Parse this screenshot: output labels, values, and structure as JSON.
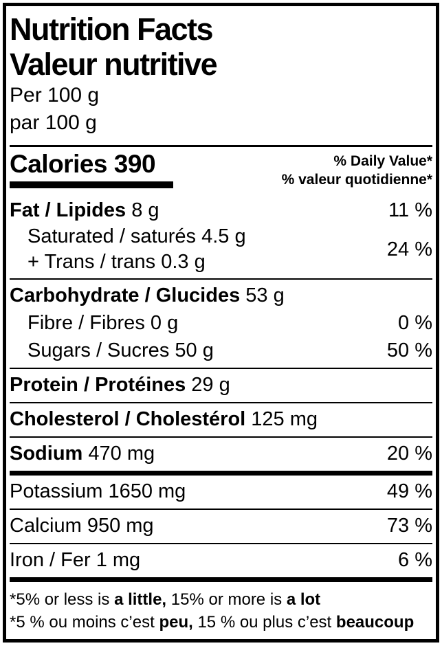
{
  "colors": {
    "foreground": "#000000",
    "background": "#ffffff"
  },
  "label": {
    "title_en": "Nutrition Facts",
    "title_fr": "Valeur nutritive",
    "serving_en": "Per 100 g",
    "serving_fr": "par 100 g",
    "calories_label": "Calories",
    "calories_value": "390",
    "dv_header_en": "% Daily Value*",
    "dv_header_fr": "% valeur quotidienne*",
    "fat": {
      "label": "Fat / Lipides",
      "amount": "8 g",
      "dv": "11 %"
    },
    "saturated": {
      "label": "Saturated / saturés",
      "amount": "4.5 g"
    },
    "trans": {
      "label": "+ Trans / trans",
      "amount": "0.3 g"
    },
    "sat_trans_dv": "24 %",
    "carbohydrate": {
      "label": "Carbohydrate / Glucides",
      "amount": "53 g"
    },
    "fibre": {
      "label": "Fibre / Fibres",
      "amount": "0 g",
      "dv": "0 %"
    },
    "sugars": {
      "label": "Sugars / Sucres",
      "amount": "50 g",
      "dv": "50 %"
    },
    "protein": {
      "label": "Protein / Protéines",
      "amount": "29 g"
    },
    "cholesterol": {
      "label": "Cholesterol / Cholestérol",
      "amount": "125 mg"
    },
    "sodium": {
      "label": "Sodium",
      "amount": "470 mg",
      "dv": "20 %"
    },
    "potassium": {
      "label": "Potassium",
      "amount": "1650 mg",
      "dv": "49 %"
    },
    "calcium": {
      "label": "Calcium",
      "amount": "950 mg",
      "dv": "73 %"
    },
    "iron": {
      "label": "Iron / Fer",
      "amount": "1 mg",
      "dv": "6 %"
    },
    "footnote_en": [
      "*5% or less is ",
      "a little,",
      " 15% or more is ",
      "a lot"
    ],
    "footnote_fr": [
      "*5 % ou moins c’est ",
      "peu,",
      " 15 % ou plus c’est ",
      "beaucoup"
    ]
  }
}
